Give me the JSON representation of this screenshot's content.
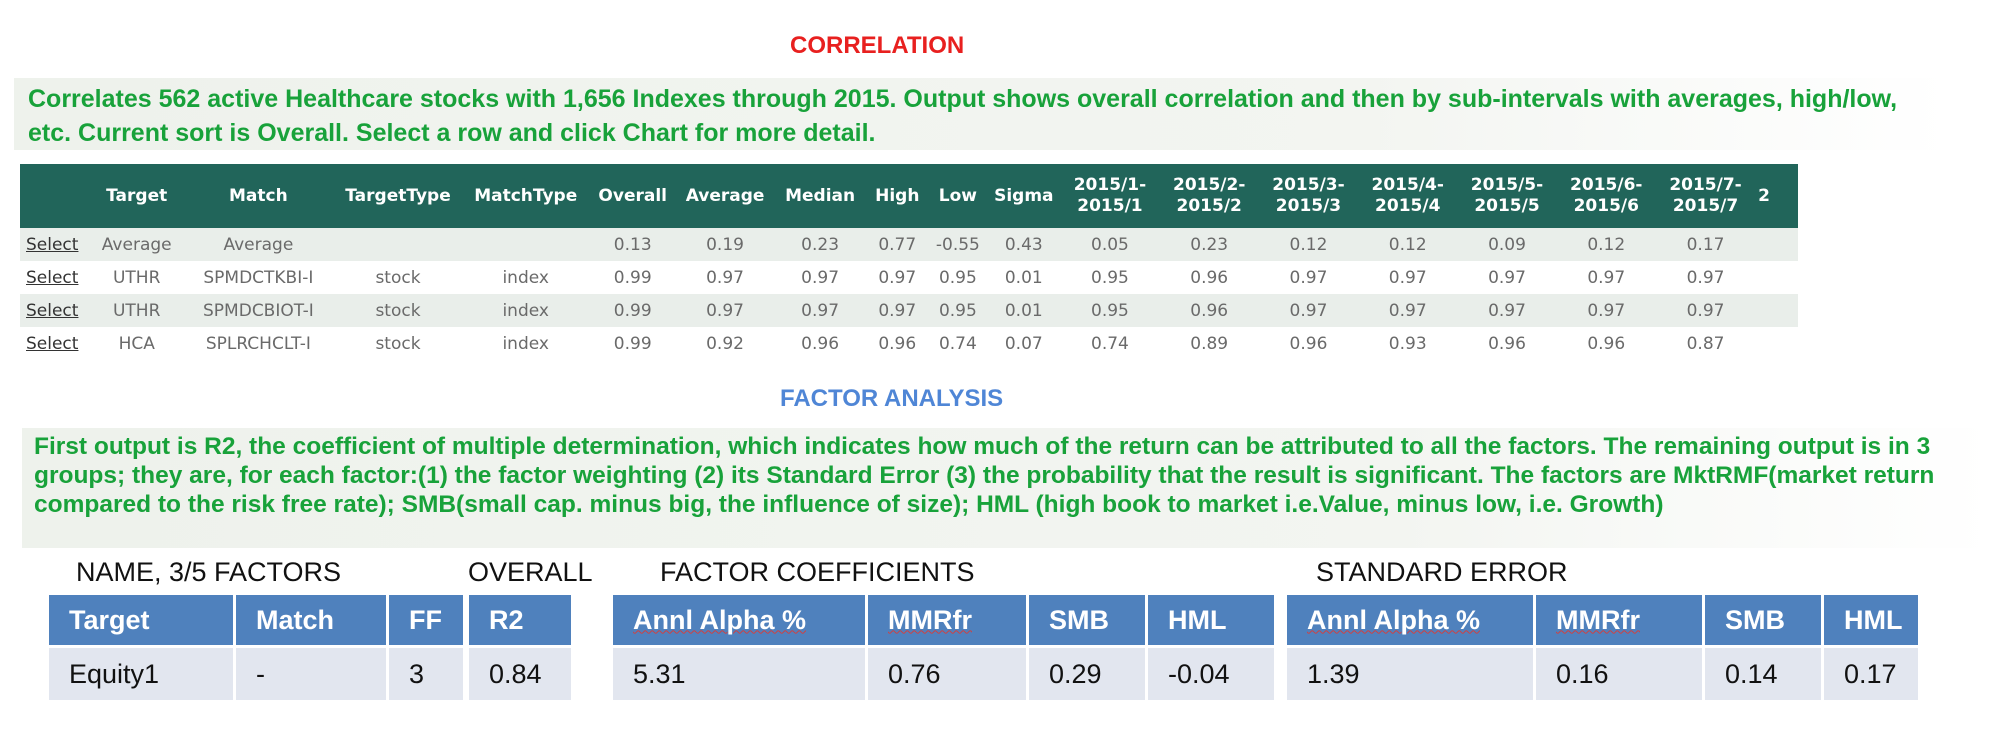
{
  "correlation": {
    "title": "CORRELATION",
    "description": "Correlates 562 active Healthcare stocks with 1,656 Indexes through 2015. Output shows overall correlation and then by sub-intervals with averages, high/low, etc. Current sort is Overall. Select a row and click Chart for more detail.",
    "headers": [
      "",
      "Target",
      "Match",
      "TargetType",
      "MatchType",
      "Overall",
      "Average",
      "Median",
      "High",
      "Low",
      "Sigma",
      "2015/1- 2015/1",
      "2015/2- 2015/2",
      "2015/3- 2015/3",
      "2015/4- 2015/4",
      "2015/5- 2015/5",
      "2015/6- 2015/6",
      "2015/7- 2015/7",
      "2"
    ],
    "rows": [
      [
        "Select",
        "Average",
        "Average",
        "",
        "",
        "0.13",
        "0.19",
        "0.23",
        "0.77",
        "-0.55",
        "0.43",
        "0.05",
        "0.23",
        "0.12",
        "0.12",
        "0.09",
        "0.12",
        "0.17",
        ""
      ],
      [
        "Select",
        "UTHR",
        "SPMDCTKBI-I",
        "stock",
        "index",
        "0.99",
        "0.97",
        "0.97",
        "0.97",
        "0.95",
        "0.01",
        "0.95",
        "0.96",
        "0.97",
        "0.97",
        "0.97",
        "0.97",
        "0.97",
        ""
      ],
      [
        "Select",
        "UTHR",
        "SPMDCBIOT-I",
        "stock",
        "index",
        "0.99",
        "0.97",
        "0.97",
        "0.97",
        "0.95",
        "0.01",
        "0.95",
        "0.96",
        "0.97",
        "0.97",
        "0.97",
        "0.97",
        "0.97",
        ""
      ],
      [
        "Select",
        "HCA",
        "SPLRCHCLT-I",
        "stock",
        "index",
        "0.99",
        "0.92",
        "0.96",
        "0.96",
        "0.74",
        "0.07",
        "0.74",
        "0.89",
        "0.96",
        "0.93",
        "0.96",
        "0.96",
        "0.87",
        ""
      ]
    ]
  },
  "factor_analysis": {
    "title": "FACTOR ANALYSIS",
    "description": "First output is R2, the coefficient of multiple determination, which indicates how much of the return can be attributed to all the factors. The remaining output is in 3 groups; they are, for each factor:(1) the factor weighting (2) its Standard Error (3) the probability that the result is significant. The factors are MktRMF(market return compared to the risk free rate); SMB(small cap. minus big, the influence of size); HML (high book to market i.e.Value, minus low, i.e. Growth)",
    "groups": {
      "name": {
        "label": "NAME, 3/5 FACTORS",
        "headers": [
          "Target",
          "Match",
          "FF"
        ],
        "values": [
          "Equity1",
          "-",
          "3"
        ]
      },
      "overall": {
        "label": "OVERALL",
        "headers": [
          "R2"
        ],
        "values": [
          "0.84"
        ]
      },
      "coefficients": {
        "label": "FACTOR COEFFICIENTS",
        "headers": [
          "Annl Alpha %",
          "MMRfr",
          "SMB",
          "HML"
        ],
        "values": [
          "5.31",
          "0.76",
          "0.29",
          "-0.04"
        ]
      },
      "std_error": {
        "label": "STANDARD ERROR",
        "headers": [
          "Annl Alpha %",
          "MMRfr",
          "SMB",
          "HML"
        ],
        "values": [
          "1.39",
          "0.16",
          "0.14",
          "0.17"
        ]
      }
    }
  }
}
